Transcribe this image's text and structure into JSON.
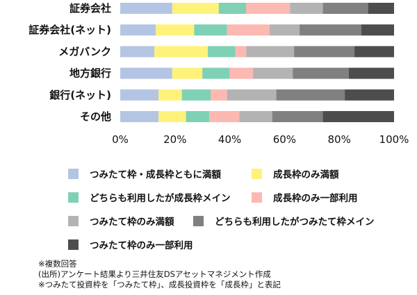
{
  "chart_data": {
    "type": "bar",
    "orientation": "horizontal",
    "stacked": true,
    "title": "",
    "xlabel": "",
    "ylabel": "",
    "xlim": [
      0,
      100
    ],
    "x_ticks": [
      "0%",
      "20%",
      "40%",
      "60%",
      "80%",
      "100%"
    ],
    "grid": false,
    "legend_position": "bottom",
    "categories": [
      "証券会社",
      "証券会社(ネット)",
      "メガバンク",
      "地方銀行",
      "銀行(ネット)",
      "その他"
    ],
    "series": [
      {
        "name": "つみたて枠・成長枠ともに満額",
        "color": "#b4c5e4",
        "values": [
          19,
          13,
          12.5,
          19,
          14,
          14
        ]
      },
      {
        "name": "成長枠のみ満額",
        "color": "#fff27a",
        "values": [
          17,
          14,
          19.5,
          11,
          8.5,
          10
        ]
      },
      {
        "name": "どちらも利用したが成長枠メイン",
        "color": "#7fd1b5",
        "values": [
          10,
          12,
          10,
          10,
          10.5,
          8.5
        ]
      },
      {
        "name": "成長枠のみ一部利用",
        "color": "#fbb9b2",
        "values": [
          16,
          15.5,
          4,
          8.5,
          6,
          11
        ]
      },
      {
        "name": "つみたて枠のみ満額",
        "color": "#b3b3b3",
        "values": [
          12,
          11,
          17.5,
          14.5,
          18,
          12
        ]
      },
      {
        "name": "どちらも利用したがつみたて枠メイン",
        "color": "#808080",
        "values": [
          16.5,
          22.5,
          22,
          20.5,
          25,
          18.5
        ]
      },
      {
        "name": "つみたて枠のみ一部利用",
        "color": "#4d4d4d",
        "values": [
          9.5,
          12,
          14.5,
          16.5,
          18,
          26
        ]
      }
    ]
  },
  "notes": [
    "※複数回答",
    "(出所)アンケート結果より三井住友DSアセットマネジメント作成",
    "※つみたて投資枠を「つみたて枠」、成長投資枠を「成長枠」と表記"
  ]
}
